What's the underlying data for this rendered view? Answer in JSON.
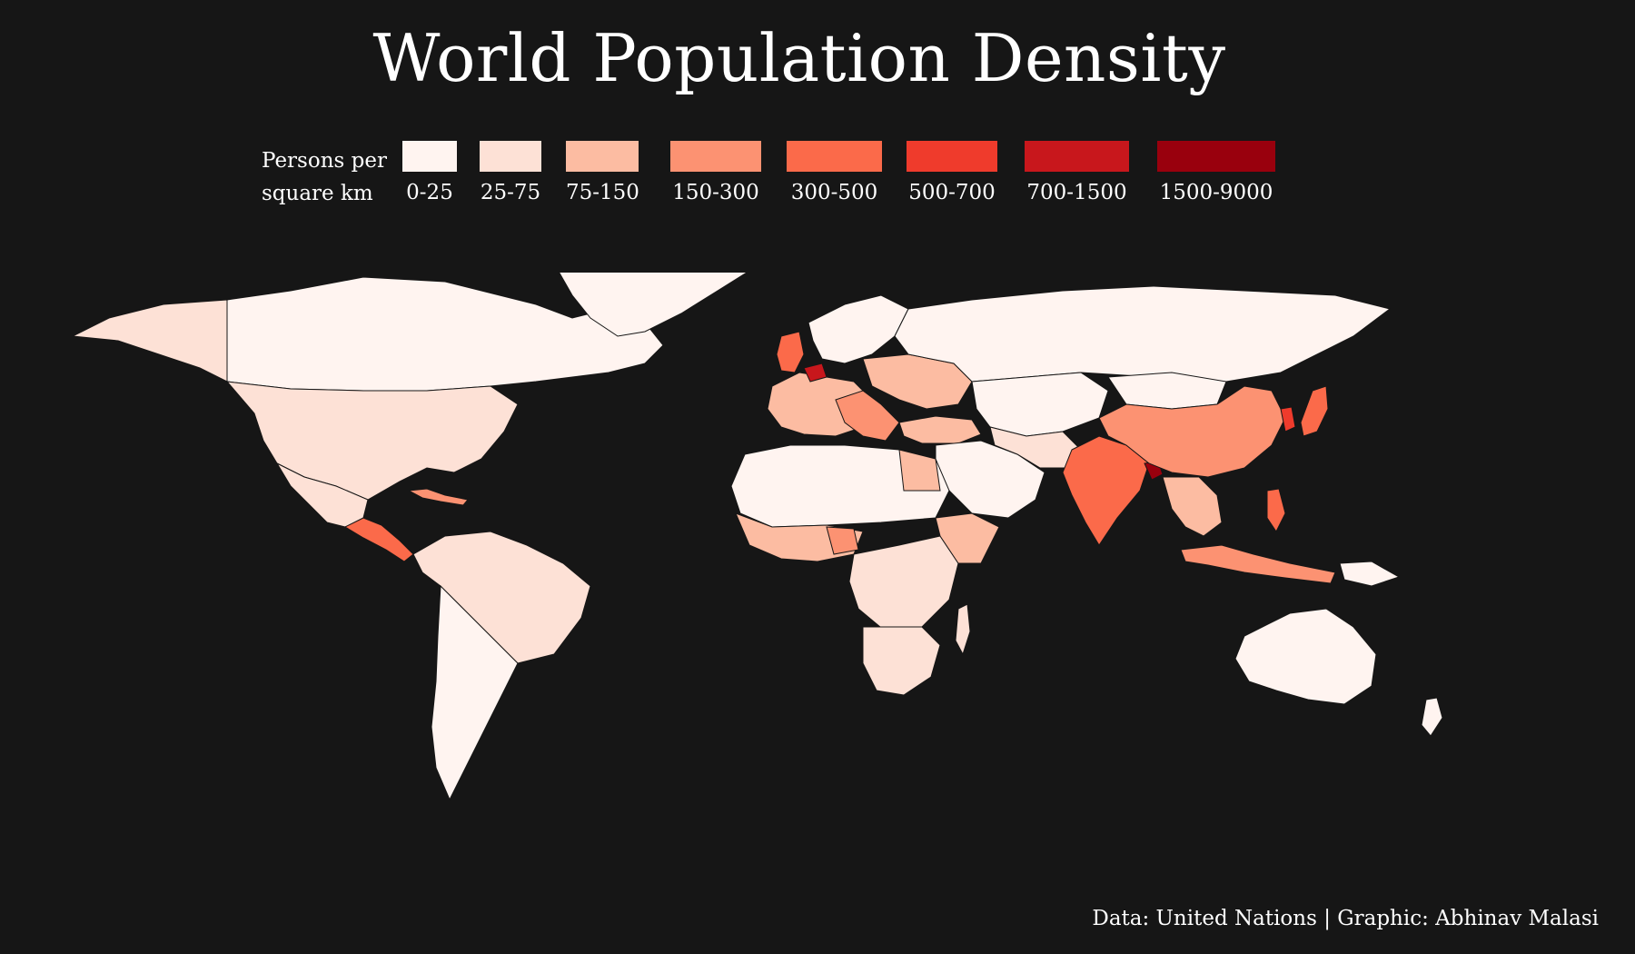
{
  "title": "World Population Density",
  "legend": {
    "caption_line1": "Persons per",
    "caption_line2": "square km",
    "items": [
      {
        "label": "0-25",
        "color": "#fff4f0"
      },
      {
        "label": "25-75",
        "color": "#fde1d6"
      },
      {
        "label": "75-150",
        "color": "#fcbca2"
      },
      {
        "label": "150-300",
        "color": "#fc9272"
      },
      {
        "label": "300-500",
        "color": "#fb6a4a"
      },
      {
        "label": "500-700",
        "color": "#ef3b2c"
      },
      {
        "label": "700-1500",
        "color": "#c8171c"
      },
      {
        "label": "1500-9000",
        "color": "#99000d"
      }
    ]
  },
  "map": {
    "projection": "equirectangular world map",
    "background_color": "#161616",
    "border_color": "#161616"
  },
  "credit": "Data: United Nations | Graphic: Abhinav Malasi"
}
